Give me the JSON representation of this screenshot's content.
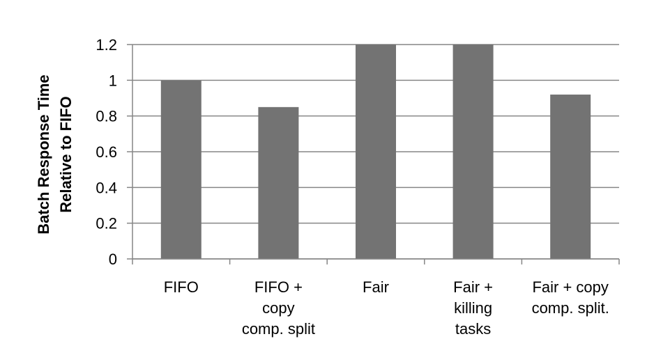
{
  "chart_data": {
    "type": "bar",
    "categories": [
      [
        "FIFO"
      ],
      [
        "FIFO +",
        "copy",
        "comp. split"
      ],
      [
        "Fair"
      ],
      [
        "Fair +",
        "killing",
        "tasks"
      ],
      [
        "Fair + copy",
        "comp. split."
      ]
    ],
    "values": [
      1.0,
      0.85,
      1.2,
      1.2,
      0.92
    ],
    "ylabel": [
      "Batch Response Time",
      "Relative to FIFO"
    ],
    "ylim": [
      0,
      1.2
    ],
    "yticks": [
      "0",
      "0.2",
      "0.4",
      "0.6",
      "0.8",
      "1",
      "1.2"
    ],
    "grid": true,
    "bar_color": "#737373",
    "grid_color": "#868686"
  }
}
